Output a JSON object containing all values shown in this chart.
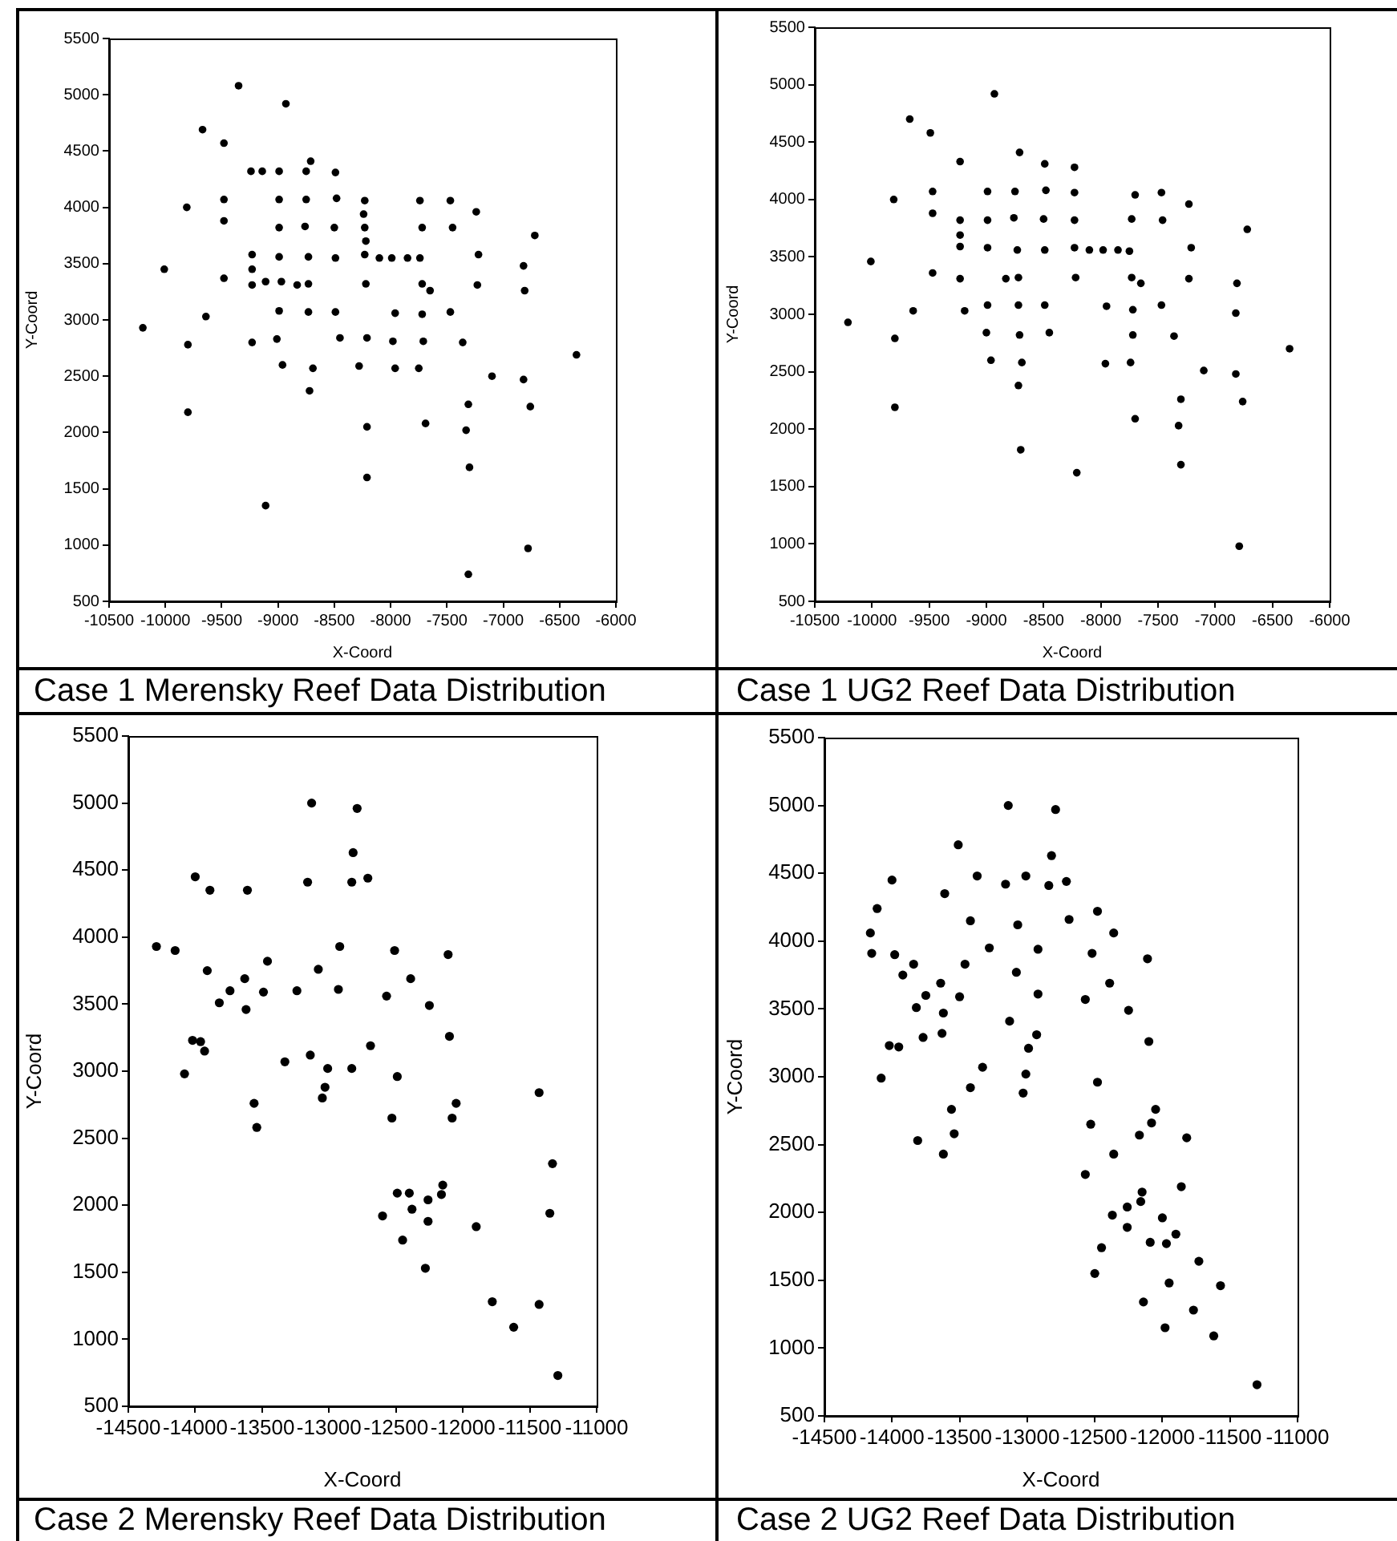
{
  "chart_data": [
    {
      "type": "scatter",
      "title": "Case 1 Merensky Reef Data Distribution",
      "xlabel": "X-Coord",
      "ylabel": "Y-Coord",
      "marker": "circle",
      "color": "#000000",
      "xlim": [
        -10500,
        -6000
      ],
      "xticks": [
        -10500,
        -10000,
        -9500,
        -9000,
        -8500,
        -8000,
        -7500,
        -7000,
        -6500,
        -6000
      ],
      "ylim": [
        500,
        5500
      ],
      "yticks": [
        500,
        1000,
        1500,
        2000,
        2500,
        3000,
        3500,
        4000,
        4500,
        5000,
        5500
      ],
      "x": [
        -9350,
        -8930,
        -9670,
        -9480,
        -9240,
        -9140,
        -8990,
        -8750,
        -8710,
        -8490,
        -9810,
        -9480,
        -8990,
        -8750,
        -8480,
        -8230,
        -7740,
        -7470,
        -7240,
        -6720,
        -9480,
        -8990,
        -8760,
        -8500,
        -8240,
        -8230,
        -8220,
        -7720,
        -7450,
        -10010,
        -9230,
        -8990,
        -8730,
        -8490,
        -8230,
        -8100,
        -7990,
        -7850,
        -7740,
        -7220,
        -6820,
        -9230,
        -9480,
        -9230,
        -9110,
        -8970,
        -8830,
        -8730,
        -8220,
        -7720,
        -7650,
        -7230,
        -6810,
        -10200,
        -9640,
        -8990,
        -8730,
        -8490,
        -7960,
        -7720,
        -7470,
        -9800,
        -9230,
        -9010,
        -8450,
        -8210,
        -7980,
        -7710,
        -7360,
        -6350,
        -8960,
        -8690,
        -8280,
        -7960,
        -7750,
        -7100,
        -6820,
        -8720,
        -9800,
        -7310,
        -6760,
        -8210,
        -7690,
        -7330,
        -7300,
        -8210,
        -9110,
        -6780,
        -7310
      ],
      "values": [
        5080,
        4920,
        4690,
        4570,
        4320,
        4320,
        4320,
        4320,
        4410,
        4310,
        4000,
        4070,
        4070,
        4070,
        4080,
        4060,
        4060,
        4060,
        3960,
        3750,
        3880,
        3820,
        3830,
        3820,
        3940,
        3820,
        3700,
        3820,
        3820,
        3450,
        3580,
        3560,
        3560,
        3550,
        3580,
        3550,
        3550,
        3550,
        3550,
        3580,
        3480,
        3450,
        3370,
        3310,
        3340,
        3340,
        3310,
        3320,
        3320,
        3320,
        3260,
        3310,
        3260,
        2930,
        3030,
        3080,
        3070,
        3070,
        3060,
        3050,
        3070,
        2780,
        2800,
        2830,
        2840,
        2840,
        2810,
        2810,
        2800,
        2690,
        2600,
        2570,
        2590,
        2570,
        2570,
        2500,
        2470,
        2370,
        2180,
        2250,
        2230,
        2050,
        2080,
        2020,
        1690,
        1600,
        1350,
        970,
        740
      ]
    },
    {
      "type": "scatter",
      "title": "Case 1 UG2 Reef Data Distribution",
      "xlabel": "X-Coord",
      "ylabel": "Y-Coord",
      "marker": "circle",
      "color": "#000000",
      "xlim": [
        -10500,
        -6000
      ],
      "xticks": [
        -10500,
        -10000,
        -9500,
        -9000,
        -8500,
        -8000,
        -7500,
        -7000,
        -6500,
        -6000
      ],
      "ylim": [
        500,
        5500
      ],
      "yticks": [
        500,
        1000,
        1500,
        2000,
        2500,
        3000,
        3500,
        4000,
        4500,
        5000,
        5500
      ],
      "x": [
        -8930,
        -9670,
        -9490,
        -9230,
        -8710,
        -8490,
        -8230,
        -9810,
        -9470,
        -8990,
        -8750,
        -8480,
        -8230,
        -7700,
        -7470,
        -7230,
        -6720,
        -9470,
        -9230,
        -8990,
        -8760,
        -8500,
        -8230,
        -7730,
        -7460,
        -9230,
        -9230,
        -8990,
        -8730,
        -8490,
        -8230,
        -8100,
        -7980,
        -7850,
        -7750,
        -7210,
        -10010,
        -9470,
        -9230,
        -8830,
        -8720,
        -8220,
        -7730,
        -7650,
        -7230,
        -6810,
        -10210,
        -9640,
        -9190,
        -8990,
        -8720,
        -8490,
        -7950,
        -7720,
        -7470,
        -6820,
        -9800,
        -9000,
        -8710,
        -8450,
        -7720,
        -7360,
        -6350,
        -8960,
        -8690,
        -7960,
        -7740,
        -7100,
        -6820,
        -8720,
        -9800,
        -7300,
        -6760,
        -7700,
        -7320,
        -8700,
        -7300,
        -8210,
        -6790
      ],
      "values": [
        4920,
        4700,
        4580,
        4330,
        4410,
        4310,
        4280,
        4000,
        4070,
        4070,
        4070,
        4080,
        4060,
        4040,
        4060,
        3960,
        3740,
        3880,
        3820,
        3820,
        3840,
        3830,
        3820,
        3830,
        3820,
        3690,
        3590,
        3580,
        3560,
        3560,
        3580,
        3560,
        3560,
        3560,
        3550,
        3580,
        3460,
        3360,
        3310,
        3310,
        3320,
        3320,
        3320,
        3270,
        3310,
        3270,
        2930,
        3030,
        3030,
        3080,
        3080,
        3080,
        3070,
        3040,
        3080,
        3010,
        2790,
        2840,
        2820,
        2840,
        2820,
        2810,
        2700,
        2600,
        2580,
        2570,
        2580,
        2510,
        2480,
        2380,
        2190,
        2260,
        2240,
        2090,
        2030,
        1820,
        1690,
        1620,
        980
      ]
    },
    {
      "type": "scatter",
      "title": "Case 2 Merensky Reef Data Distribution",
      "xlabel": "X-Coord",
      "ylabel": "Y-Coord",
      "marker": "circle",
      "color": "#000000",
      "xlim": [
        -14500,
        -11000
      ],
      "xticks": [
        -14500,
        -14000,
        -13500,
        -13000,
        -12500,
        -12000,
        -11500,
        -11000
      ],
      "ylim": [
        500,
        5500
      ],
      "yticks": [
        500,
        1000,
        1500,
        2000,
        2500,
        3000,
        3500,
        4000,
        4500,
        5000,
        5500
      ],
      "x": [
        -13130,
        -12790,
        -12820,
        -14000,
        -13890,
        -13610,
        -13160,
        -12830,
        -12710,
        -14290,
        -14150,
        -12920,
        -12510,
        -12110,
        -13910,
        -13460,
        -13080,
        -13630,
        -12390,
        -13740,
        -13490,
        -13240,
        -12930,
        -13820,
        -13620,
        -12570,
        -12250,
        -14020,
        -13960,
        -13930,
        -12100,
        -12690,
        -14080,
        -13330,
        -13140,
        -13010,
        -12830,
        -13030,
        -13050,
        -12490,
        -13560,
        -13540,
        -12530,
        -12050,
        -12080,
        -11430,
        -11330,
        -12490,
        -12400,
        -12150,
        -12160,
        -12260,
        -12380,
        -12600,
        -12260,
        -11350,
        -11900,
        -12450,
        -12280,
        -11780,
        -11430,
        -11620,
        -11290
      ],
      "values": [
        5000,
        4960,
        4630,
        4450,
        4350,
        4350,
        4410,
        4410,
        4440,
        3930,
        3900,
        3930,
        3900,
        3870,
        3750,
        3820,
        3760,
        3690,
        3690,
        3600,
        3590,
        3600,
        3610,
        3510,
        3460,
        3560,
        3490,
        3230,
        3220,
        3150,
        3260,
        3190,
        2980,
        3070,
        3120,
        3020,
        3020,
        2880,
        2800,
        2960,
        2760,
        2580,
        2650,
        2760,
        2650,
        2840,
        2310,
        2090,
        2090,
        2150,
        2080,
        2040,
        1970,
        1920,
        1880,
        1940,
        1840,
        1740,
        1530,
        1280,
        1260,
        1090,
        730
      ]
    },
    {
      "type": "scatter",
      "title": "Case 2 UG2 Reef Data Distribution",
      "xlabel": "X-Coord",
      "ylabel": "Y-Coord",
      "marker": "circle",
      "color": "#000000",
      "xlim": [
        -14500,
        -11000
      ],
      "xticks": [
        -14500,
        -14000,
        -13500,
        -13000,
        -12500,
        -12000,
        -11500,
        -11000
      ],
      "ylim": [
        500,
        5500
      ],
      "yticks": [
        500,
        1000,
        1500,
        2000,
        2500,
        3000,
        3500,
        4000,
        4500,
        5000,
        5500
      ],
      "x": [
        -13140,
        -12790,
        -12820,
        -13510,
        -13370,
        -14000,
        -13160,
        -13010,
        -12840,
        -12710,
        -13610,
        -14110,
        -12480,
        -13420,
        -13070,
        -12690,
        -12360,
        -14160,
        -14150,
        -13980,
        -13280,
        -12920,
        -12520,
        -12110,
        -13840,
        -13460,
        -13920,
        -13080,
        -13640,
        -12390,
        -13750,
        -13500,
        -12920,
        -12570,
        -13820,
        -13620,
        -12250,
        -13130,
        -13630,
        -13770,
        -12930,
        -14020,
        -13950,
        -12990,
        -12100,
        -13330,
        -13010,
        -14080,
        -12480,
        -13420,
        -13030,
        -13560,
        -12050,
        -12530,
        -12080,
        -13540,
        -12170,
        -11820,
        -13810,
        -13620,
        -12360,
        -12570,
        -11860,
        -12150,
        -12160,
        -12260,
        -12370,
        -12000,
        -12260,
        -12090,
        -11970,
        -11900,
        -12450,
        -11730,
        -12500,
        -11950,
        -11570,
        -12140,
        -11770,
        -11980,
        -11620,
        -11300
      ],
      "values": [
        5000,
        4970,
        4630,
        4710,
        4480,
        4450,
        4420,
        4480,
        4410,
        4440,
        4350,
        4240,
        4220,
        4150,
        4120,
        4160,
        4060,
        4060,
        3910,
        3900,
        3950,
        3940,
        3910,
        3870,
        3830,
        3830,
        3750,
        3770,
        3690,
        3690,
        3600,
        3590,
        3610,
        3570,
        3510,
        3470,
        3490,
        3410,
        3320,
        3290,
        3310,
        3230,
        3220,
        3210,
        3260,
        3070,
        3020,
        2990,
        2960,
        2920,
        2880,
        2760,
        2760,
        2650,
        2660,
        2580,
        2570,
        2550,
        2530,
        2430,
        2430,
        2280,
        2190,
        2150,
        2080,
        2040,
        1980,
        1960,
        1890,
        1780,
        1770,
        1840,
        1740,
        1640,
        1550,
        1480,
        1460,
        1340,
        1280,
        1150,
        1090,
        730
      ]
    }
  ]
}
